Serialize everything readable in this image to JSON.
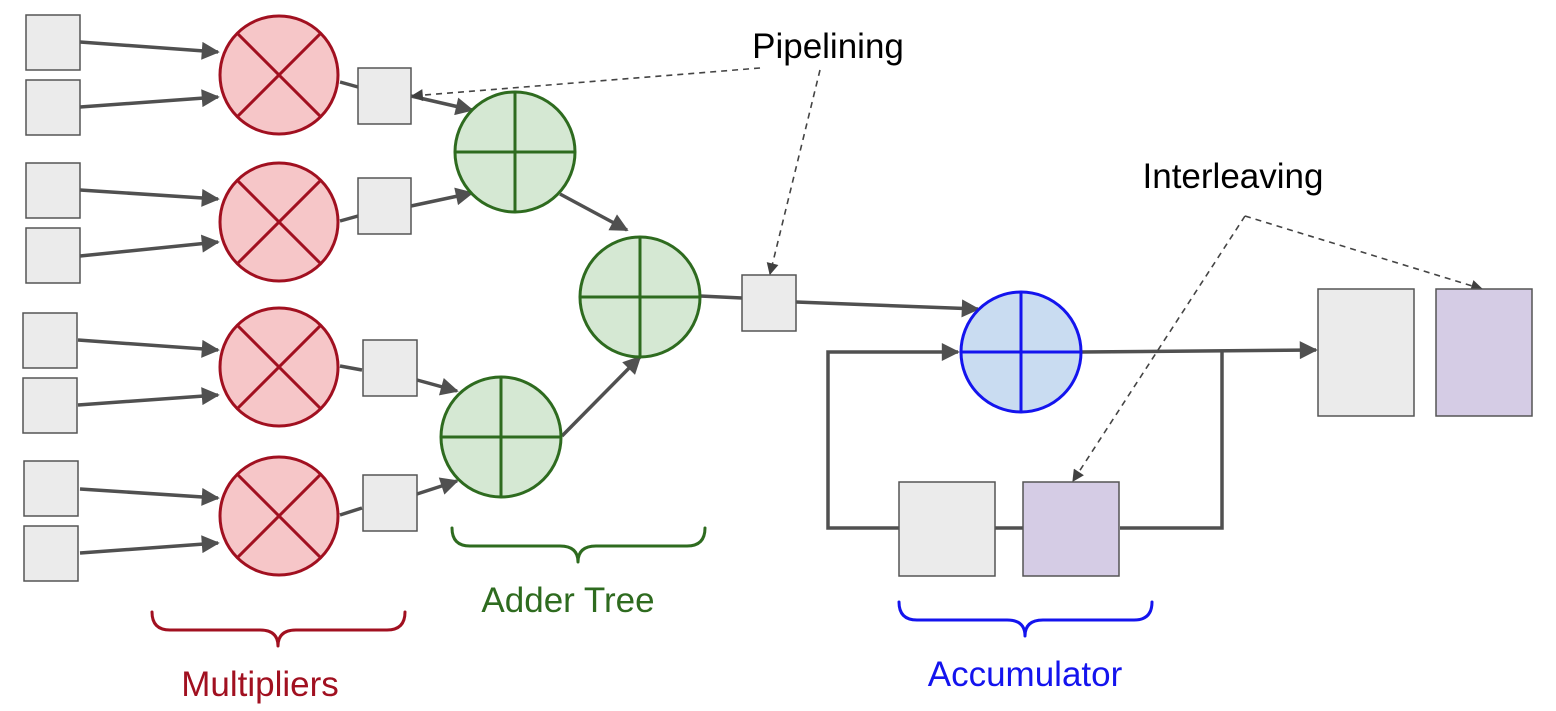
{
  "labels": {
    "pipelining": "Pipelining",
    "interleaving": "Interleaving",
    "multipliers": "Multipliers",
    "adder_tree": "Adder Tree",
    "accumulator": "Accumulator"
  },
  "colors": {
    "box_fill": "#ebebeb",
    "box_stroke": "#555555",
    "wire": "#505050",
    "multiplier_fill": "#f6c6c8",
    "multiplier_stroke": "#a11020",
    "adder_fill": "#d5e8d3",
    "adder_stroke": "#2e6b1f",
    "accumulator_fill": "#c9dcf1",
    "accumulator_stroke": "#1414ee",
    "register_purple_fill": "#d5cce5",
    "label_black": "#000000",
    "label_red": "#a11020",
    "label_green": "#2e6b1f",
    "label_blue": "#1414ee"
  }
}
